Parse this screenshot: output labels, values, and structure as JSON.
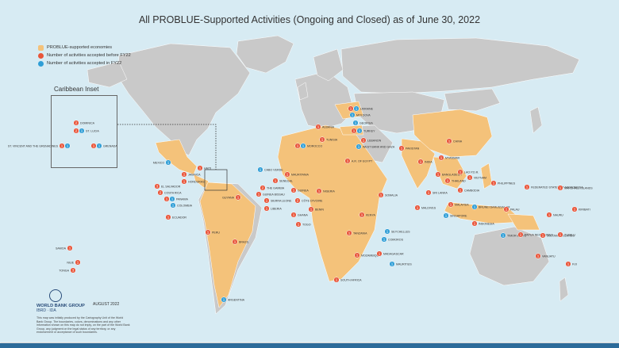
{
  "title": "All PROBLUE-Supported Activities (Ongoing and Closed) as of June 30, 2022",
  "legend": [
    {
      "label": "PROBLUE-supported economies",
      "color": "#f4c27a",
      "shape": "square"
    },
    {
      "label": "Number of activities accepted before FY22",
      "color": "#e8553a",
      "shape": "circle"
    },
    {
      "label": "Number of activities accepted in FY22",
      "color": "#2f9ed6",
      "shape": "circle"
    }
  ],
  "inset_title": "Caribbean Inset",
  "logo_text": "WORLD BANK GROUP",
  "logo_sub": "IBRD · IDA",
  "date": "AUGUST 2022",
  "disclaimer": "This map was initially produced by the Cartography Unit of the World Bank Group. The boundaries, colors, denominations and any other information shown on this map do not imply, on the part of the World Bank Group, any judgment on the legal status of any territory, or any endorsement or acceptance of such boundaries.",
  "colors": {
    "ocean": "#d7ebf3",
    "land": "#c9c9c9",
    "supported": "#f4c27a",
    "before": "#e8553a",
    "fy22": "#2f9ed6"
  },
  "markers": [
    {
      "name": "DOMINICA",
      "before": "2"
    },
    {
      "name": "ST. LUCIA",
      "before": "2",
      "fy22": "1"
    },
    {
      "name": "ST. VINCENT AND THE GRENADINES",
      "before": "1",
      "fy22": "1"
    },
    {
      "name": "GRENADA",
      "before": "1",
      "fy22": "1"
    },
    {
      "name": "MEXICO",
      "fy22": "1"
    },
    {
      "name": "HAITI",
      "before": "1"
    },
    {
      "name": "JAMAICA",
      "before": "1"
    },
    {
      "name": "HONDURAS",
      "before": "1"
    },
    {
      "name": "EL SALVADOR",
      "before": "3"
    },
    {
      "name": "COSTA RICA",
      "before": "2"
    },
    {
      "name": "PANAMA",
      "before": "1",
      "fy22": "1"
    },
    {
      "name": "COLOMBIA",
      "fy22": "1"
    },
    {
      "name": "ECUADOR",
      "before": "1"
    },
    {
      "name": "PERU",
      "before": "1"
    },
    {
      "name": "BRAZIL",
      "before": "1"
    },
    {
      "name": "ARGENTINA",
      "fy22": "1"
    },
    {
      "name": "GUYANA",
      "before": "1"
    },
    {
      "name": "SAMOA",
      "before": "1"
    },
    {
      "name": "NIUE",
      "before": "1"
    },
    {
      "name": "TONGA",
      "before": "3"
    },
    {
      "name": "CABO VERDE",
      "fy22": "1"
    },
    {
      "name": "MAURITANIA",
      "before": "1"
    },
    {
      "name": "SENEGAL",
      "before": "1"
    },
    {
      "name": "THE GAMBIA",
      "before": "2"
    },
    {
      "name": "GUINEA BISSAU",
      "before": "1"
    },
    {
      "name": "GUINEA",
      "before": "1"
    },
    {
      "name": "SIERRA LEONE",
      "before": "1"
    },
    {
      "name": "LIBERIA",
      "before": "1"
    },
    {
      "name": "CÔTE D'IVOIRE",
      "before": "2"
    },
    {
      "name": "GHANA",
      "before": "1"
    },
    {
      "name": "TOGO",
      "before": "1"
    },
    {
      "name": "BENIN",
      "before": "1"
    },
    {
      "name": "NIGERIA",
      "before": "1"
    },
    {
      "name": "MOROCCO",
      "before": "1",
      "fy22": "1"
    },
    {
      "name": "TUNISIA",
      "before": "1"
    },
    {
      "name": "ALBANIA",
      "before": "1"
    },
    {
      "name": "UKRAINE",
      "before": "1",
      "fy22": "1"
    },
    {
      "name": "MOLDOVA",
      "fy22": "1"
    },
    {
      "name": "GEORGIA",
      "fy22": "1"
    },
    {
      "name": "TURKEY",
      "before": "1",
      "fy22": "1"
    },
    {
      "name": "LEBANON",
      "before": "1"
    },
    {
      "name": "WEST BANK AND GAZA",
      "fy22": "1"
    },
    {
      "name": "A.R. OF EGYPT",
      "before": "1"
    },
    {
      "name": "SOMALIA",
      "before": "1"
    },
    {
      "name": "KENYA",
      "before": "1"
    },
    {
      "name": "TANZANIA",
      "before": "1"
    },
    {
      "name": "SEYCHELLES",
      "fy22": "1"
    },
    {
      "name": "COMOROS",
      "fy22": "1"
    },
    {
      "name": "MOZAMBIQUE",
      "before": "1"
    },
    {
      "name": "MADAGASCAR",
      "before": "1"
    },
    {
      "name": "MAURITIUS",
      "fy22": "1"
    },
    {
      "name": "SOUTH AFRICA",
      "before": "1"
    },
    {
      "name": "PAKISTAN",
      "before": "1"
    },
    {
      "name": "INDIA",
      "before": "1"
    },
    {
      "name": "SRI LANKA",
      "before": "1"
    },
    {
      "name": "MALDIVES",
      "before": "1"
    },
    {
      "name": "BANGLADESH",
      "before": "1"
    },
    {
      "name": "MYANMAR",
      "before": "1"
    },
    {
      "name": "CHINA",
      "before": "1"
    },
    {
      "name": "THAILAND",
      "before": "1"
    },
    {
      "name": "LAO P.D.R.",
      "before": "1"
    },
    {
      "name": "CAMBODIA",
      "before": "1"
    },
    {
      "name": "VIETNAM",
      "before": "1"
    },
    {
      "name": "PHILIPPINES",
      "before": "1"
    },
    {
      "name": "MALAYSIA",
      "before": "1"
    },
    {
      "name": "BRUNEI DARUSSALAM",
      "fy22": "1"
    },
    {
      "name": "SINGAPORE",
      "fy22": "1"
    },
    {
      "name": "INDONESIA",
      "before": "1"
    },
    {
      "name": "TIMOR-LESTE",
      "fy22": "1"
    },
    {
      "name": "PAPUA NEW GUINEA",
      "before": "1"
    },
    {
      "name": "SOLOMON ISLANDS",
      "before": "1"
    },
    {
      "name": "VANUATU",
      "before": "1"
    },
    {
      "name": "FIJI",
      "before": "1"
    },
    {
      "name": "PALAU",
      "before": "1"
    },
    {
      "name": "FEDERATED STATES OF MICRONESIA",
      "before": "1"
    },
    {
      "name": "MARSHALL ISLANDS",
      "before": "1"
    },
    {
      "name": "NAURU",
      "before": "1"
    },
    {
      "name": "KIRIBATI",
      "before": "1"
    },
    {
      "name": "TUVALU",
      "before": "1"
    }
  ]
}
